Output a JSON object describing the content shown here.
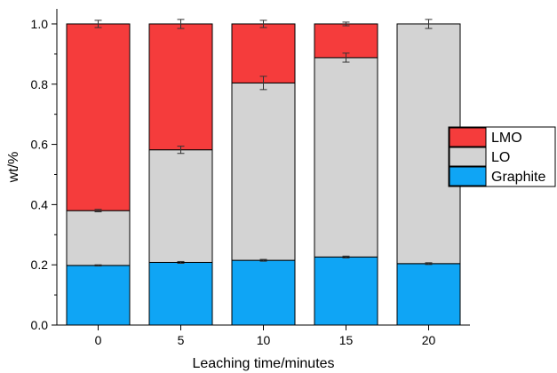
{
  "chart_data": {
    "type": "bar",
    "stacked": true,
    "categories": [
      "0",
      "5",
      "10",
      "15",
      "20"
    ],
    "series": [
      {
        "name": "Graphite",
        "values": [
          0.198,
          0.208,
          0.215,
          0.226,
          0.204
        ],
        "errors": [
          0.002,
          0.003,
          0.003,
          0.003,
          0.003
        ],
        "color": "#0fa5f5"
      },
      {
        "name": "LO",
        "values": [
          0.182,
          0.374,
          0.589,
          0.662,
          0.796
        ],
        "errors": [
          0.004,
          0.012,
          0.022,
          0.015,
          0.015
        ],
        "color": "#d3d3d3"
      },
      {
        "name": "LMO",
        "values": [
          0.62,
          0.418,
          0.196,
          0.112,
          0.0
        ],
        "errors": [
          0.012,
          0.015,
          0.012,
          0.006,
          0.0
        ],
        "color": "#f53c3c"
      }
    ],
    "legend_order": [
      "LMO",
      "LO",
      "Graphite"
    ],
    "legend_position": "right",
    "xlabel": "Leaching time/minutes",
    "ylabel": "wt/%",
    "ylim": [
      0.0,
      1.05
    ],
    "yticks": [
      "0.0",
      "0.2",
      "0.4",
      "0.6",
      "0.8",
      "1.0"
    ],
    "grid": false
  }
}
